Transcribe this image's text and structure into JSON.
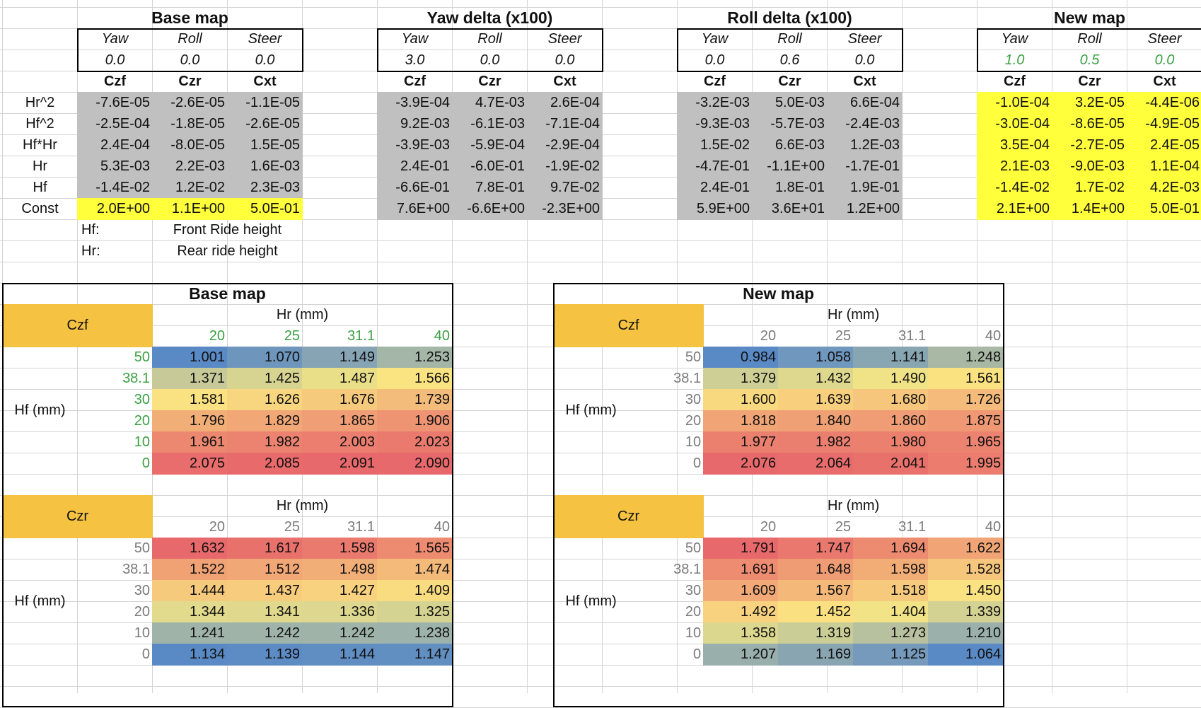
{
  "panels": [
    {
      "title": "Base map",
      "params": {
        "headers": [
          "Yaw",
          "Roll",
          "Steer"
        ],
        "values": [
          "0.0",
          "0.0",
          "0.0"
        ],
        "value_color": "black"
      },
      "coef_headers": [
        "Czf",
        "Czr",
        "Cxt"
      ],
      "rows": [
        {
          "label": "Hr^2",
          "values": [
            "-7.6E-05",
            "-2.6E-05",
            "-1.1E-05"
          ],
          "style": "gray"
        },
        {
          "label": "Hf^2",
          "values": [
            "-2.5E-04",
            "-1.8E-05",
            "-2.6E-05"
          ],
          "style": "gray"
        },
        {
          "label": "Hf*Hr",
          "values": [
            "2.4E-04",
            "-8.0E-05",
            "1.5E-05"
          ],
          "style": "gray"
        },
        {
          "label": "Hr",
          "values": [
            "5.3E-03",
            "2.2E-03",
            "1.6E-03"
          ],
          "style": "gray"
        },
        {
          "label": "Hf",
          "values": [
            "-1.4E-02",
            "1.2E-02",
            "2.3E-03"
          ],
          "style": "gray"
        },
        {
          "label": "Const",
          "values": [
            "2.0E+00",
            "1.1E+00",
            "5.0E-01"
          ],
          "style": "yel"
        }
      ]
    },
    {
      "title": "Yaw delta (x100)",
      "params": {
        "headers": [
          "Yaw",
          "Roll",
          "Steer"
        ],
        "values": [
          "3.0",
          "0.0",
          "0.0"
        ],
        "value_color": "black"
      },
      "coef_headers": [
        "Czf",
        "Czr",
        "Cxt"
      ],
      "rows": [
        {
          "values": [
            "-3.9E-04",
            "4.7E-03",
            "2.6E-04"
          ],
          "style": "gray"
        },
        {
          "values": [
            "9.2E-03",
            "-6.1E-03",
            "-7.1E-04"
          ],
          "style": "gray"
        },
        {
          "values": [
            "-3.9E-03",
            "-5.9E-04",
            "-2.9E-04"
          ],
          "style": "gray"
        },
        {
          "values": [
            "2.4E-01",
            "-6.0E-01",
            "-1.9E-02"
          ],
          "style": "gray"
        },
        {
          "values": [
            "-6.6E-01",
            "7.8E-01",
            "9.7E-02"
          ],
          "style": "gray"
        },
        {
          "values": [
            "7.6E+00",
            "-6.6E+00",
            "-2.3E+00"
          ],
          "style": "gray"
        }
      ]
    },
    {
      "title": "Roll delta (x100)",
      "params": {
        "headers": [
          "Yaw",
          "Roll",
          "Steer"
        ],
        "values": [
          "0.0",
          "0.6",
          "0.0"
        ],
        "value_color": "black"
      },
      "coef_headers": [
        "Czf",
        "Czr",
        "Cxt"
      ],
      "rows": [
        {
          "values": [
            "-3.2E-03",
            "5.0E-03",
            "6.6E-04"
          ],
          "style": "gray"
        },
        {
          "values": [
            "-9.3E-03",
            "-5.7E-03",
            "-2.4E-03"
          ],
          "style": "gray"
        },
        {
          "values": [
            "1.5E-02",
            "6.6E-03",
            "1.2E-03"
          ],
          "style": "gray"
        },
        {
          "values": [
            "-4.7E-01",
            "-1.1E+00",
            "-1.7E-01"
          ],
          "style": "gray"
        },
        {
          "values": [
            "2.4E-01",
            "1.8E-01",
            "1.9E-01"
          ],
          "style": "gray"
        },
        {
          "values": [
            "5.9E+00",
            "3.6E+01",
            "1.2E+00"
          ],
          "style": "gray"
        }
      ]
    },
    {
      "title": "New map",
      "params": {
        "headers": [
          "Yaw",
          "Roll",
          "Steer"
        ],
        "values": [
          "1.0",
          "0.5",
          "0.0"
        ],
        "value_color": "green"
      },
      "coef_headers": [
        "Czf",
        "Czr",
        "Cxt"
      ],
      "rows": [
        {
          "values": [
            "-1.0E-04",
            "3.2E-05",
            "-4.4E-06"
          ],
          "style": "yel"
        },
        {
          "values": [
            "-3.0E-04",
            "-8.6E-05",
            "-4.9E-05"
          ],
          "style": "yel"
        },
        {
          "values": [
            "3.5E-04",
            "-2.7E-05",
            "2.4E-05"
          ],
          "style": "yel"
        },
        {
          "values": [
            "2.1E-03",
            "-9.0E-03",
            "1.1E-04"
          ],
          "style": "yel"
        },
        {
          "values": [
            "-1.4E-02",
            "1.7E-02",
            "4.2E-03"
          ],
          "style": "yel"
        },
        {
          "values": [
            "2.1E+00",
            "1.4E+00",
            "5.0E-01"
          ],
          "style": "yel"
        }
      ]
    }
  ],
  "legend": [
    {
      "key": "Hf:",
      "text": "Front Ride height"
    },
    {
      "key": "Hr:",
      "text": "Rear ride height"
    }
  ],
  "maps": [
    {
      "title": "Base map",
      "blocks": [
        {
          "name": "Czf",
          "col_axis": "Hr (mm)",
          "row_axis": "Hf (mm)",
          "cols": [
            "20",
            "25",
            "31.1",
            "40"
          ],
          "rows": [
            "50",
            "38.1",
            "30",
            "20",
            "10",
            "0"
          ],
          "label_color": "green",
          "values": [
            [
              "1.001",
              "1.070",
              "1.149",
              "1.253"
            ],
            [
              "1.371",
              "1.425",
              "1.487",
              "1.566"
            ],
            [
              "1.581",
              "1.626",
              "1.676",
              "1.739"
            ],
            [
              "1.796",
              "1.829",
              "1.865",
              "1.906"
            ],
            [
              "1.961",
              "1.982",
              "2.003",
              "2.023"
            ],
            [
              "2.075",
              "2.085",
              "2.091",
              "2.090"
            ]
          ]
        },
        {
          "name": "Czr",
          "col_axis": "Hr (mm)",
          "row_axis": "Hf (mm)",
          "cols": [
            "20",
            "25",
            "31.1",
            "40"
          ],
          "rows": [
            "50",
            "38.1",
            "30",
            "20",
            "10",
            "0"
          ],
          "label_color": "gray",
          "values": [
            [
              "1.632",
              "1.617",
              "1.598",
              "1.565"
            ],
            [
              "1.522",
              "1.512",
              "1.498",
              "1.474"
            ],
            [
              "1.444",
              "1.437",
              "1.427",
              "1.409"
            ],
            [
              "1.344",
              "1.341",
              "1.336",
              "1.325"
            ],
            [
              "1.241",
              "1.242",
              "1.242",
              "1.238"
            ],
            [
              "1.134",
              "1.139",
              "1.144",
              "1.147"
            ]
          ]
        }
      ]
    },
    {
      "title": "New map",
      "blocks": [
        {
          "name": "Czf",
          "col_axis": "Hr (mm)",
          "row_axis": "Hf (mm)",
          "cols": [
            "20",
            "25",
            "31.1",
            "40"
          ],
          "rows": [
            "50",
            "38.1",
            "30",
            "20",
            "10",
            "0"
          ],
          "label_color": "gray",
          "values": [
            [
              "0.984",
              "1.058",
              "1.141",
              "1.248"
            ],
            [
              "1.379",
              "1.432",
              "1.490",
              "1.561"
            ],
            [
              "1.600",
              "1.639",
              "1.680",
              "1.726"
            ],
            [
              "1.818",
              "1.840",
              "1.860",
              "1.875"
            ],
            [
              "1.977",
              "1.982",
              "1.980",
              "1.965"
            ],
            [
              "2.076",
              "2.064",
              "2.041",
              "1.995"
            ]
          ]
        },
        {
          "name": "Czr",
          "col_axis": "Hr (mm)",
          "row_axis": "Hf (mm)",
          "cols": [
            "20",
            "25",
            "31.1",
            "40"
          ],
          "rows": [
            "50",
            "38.1",
            "30",
            "20",
            "10",
            "0"
          ],
          "label_color": "gray",
          "values": [
            [
              "1.791",
              "1.747",
              "1.694",
              "1.622"
            ],
            [
              "1.691",
              "1.648",
              "1.598",
              "1.528"
            ],
            [
              "1.609",
              "1.567",
              "1.518",
              "1.450"
            ],
            [
              "1.492",
              "1.452",
              "1.404",
              "1.339"
            ],
            [
              "1.358",
              "1.319",
              "1.273",
              "1.210"
            ],
            [
              "1.207",
              "1.169",
              "1.125",
              "1.064"
            ]
          ]
        }
      ]
    }
  ],
  "colors": {
    "coef_gray": "#c0c0c0",
    "const_yellow": "#ffff3b",
    "header_orange": "#f5c242",
    "label_green": "#3aa141",
    "scale_low": "#5a8ac6",
    "scale_mid": "#fbe982",
    "scale_high": "#e8696b"
  }
}
